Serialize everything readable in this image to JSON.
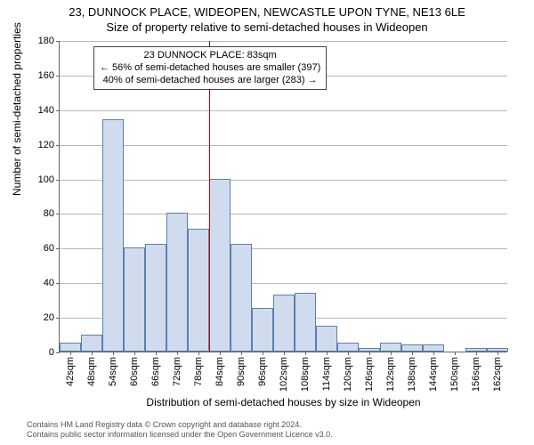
{
  "header": {
    "line1": "23, DUNNOCK PLACE, WIDEOPEN, NEWCASTLE UPON TYNE, NE13 6LE",
    "line2": "Size of property relative to semi-detached houses in Wideopen"
  },
  "chart": {
    "type": "histogram",
    "y_axis": {
      "label": "Number of semi-detached properties",
      "min": 0,
      "max": 180,
      "tick_step": 20,
      "label_fontsize": 12,
      "tick_fontsize": 11
    },
    "x_axis": {
      "label": "Distribution of semi-detached houses by size in Wideopen",
      "categories": [
        "42sqm",
        "48sqm",
        "54sqm",
        "60sqm",
        "66sqm",
        "72sqm",
        "78sqm",
        "84sqm",
        "90sqm",
        "96sqm",
        "102sqm",
        "108sqm",
        "114sqm",
        "120sqm",
        "126sqm",
        "132sqm",
        "138sqm",
        "144sqm",
        "150sqm",
        "156sqm",
        "162sqm"
      ],
      "label_fontsize": 12,
      "tick_fontsize": 11,
      "tick_rotation": -90
    },
    "bars": {
      "values": [
        5,
        10,
        134,
        60,
        62,
        80,
        71,
        100,
        62,
        25,
        33,
        34,
        15,
        5,
        2,
        5,
        4,
        4,
        0,
        2,
        2
      ],
      "fill_color": "#d0dced",
      "border_color": "#5b7fb0",
      "width_fraction": 1.0
    },
    "grid": {
      "color": "#b8b8b8",
      "show_horizontal": true
    },
    "reference_line": {
      "x_index": 7,
      "color": "#cc0000"
    },
    "annotation": {
      "line1": "23 DUNNOCK PLACE: 83sqm",
      "line2": "← 56% of semi-detached houses are smaller (397)",
      "line3": "40% of semi-detached houses are larger (283) →",
      "border_color": "#444444",
      "background": "#ffffff",
      "fontsize": 11
    },
    "background_color": "#ffffff",
    "axis_color": "#666666"
  },
  "footer": {
    "line1": "Contains HM Land Registry data © Crown copyright and database right 2024.",
    "line2": "Contains public sector information licensed under the Open Government Licence v3.0."
  }
}
